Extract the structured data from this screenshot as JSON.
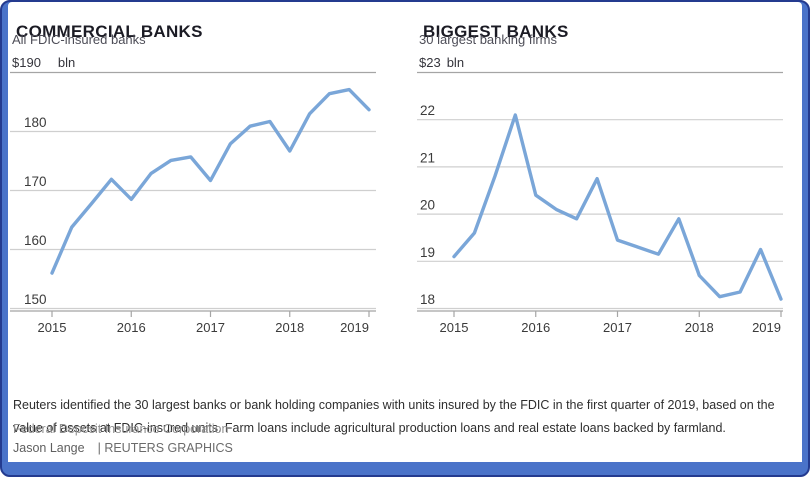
{
  "frame": {
    "border_color": "#243b8f",
    "accent_bar_color": "#4a73c9"
  },
  "chart_data": [
    {
      "type": "line",
      "title": "COMMERCIAL BANKS",
      "subtitle": "All FDIC-insured banks",
      "y_axis_top_label": "$190",
      "y_axis_unit": "bln",
      "x": [
        2015.0,
        2015.25,
        2015.5,
        2015.75,
        2016.0,
        2016.25,
        2016.5,
        2016.75,
        2017.0,
        2017.25,
        2017.5,
        2017.75,
        2018.0,
        2018.25,
        2018.5,
        2018.75,
        2019.0
      ],
      "values": [
        156.0,
        163.8,
        167.8,
        171.9,
        168.5,
        172.9,
        175.1,
        175.7,
        171.7,
        177.9,
        180.9,
        181.7,
        176.7,
        183.0,
        186.4,
        187.1,
        183.7
      ],
      "ylim": [
        150,
        190
      ],
      "yticks": [
        180,
        170,
        160,
        150
      ],
      "xticks": [
        2015,
        2016,
        2017,
        2018,
        2019
      ],
      "x_frequency": "quarterly",
      "grid": "on",
      "legend": "none",
      "line_color": "#7aa6d8"
    },
    {
      "type": "line",
      "title": "BIGGEST BANKS",
      "subtitle": "30 largest banking firms",
      "y_axis_top_label": "$23",
      "y_axis_unit": "bln",
      "x": [
        2015.0,
        2015.25,
        2015.5,
        2015.75,
        2016.0,
        2016.25,
        2016.5,
        2016.75,
        2017.0,
        2017.25,
        2017.5,
        2017.75,
        2018.0,
        2018.25,
        2018.5,
        2018.75,
        2019.0
      ],
      "values": [
        19.1,
        19.6,
        20.8,
        22.1,
        20.4,
        20.1,
        19.9,
        20.75,
        19.45,
        19.3,
        19.15,
        19.9,
        18.7,
        18.25,
        18.35,
        19.25,
        18.2
      ],
      "ylim": [
        18,
        23
      ],
      "yticks": [
        22,
        21,
        20,
        19,
        18
      ],
      "xticks": [
        2015,
        2016,
        2017,
        2018,
        2019
      ],
      "x_frequency": "quarterly",
      "grid": "on",
      "legend": "none",
      "line_color": "#7aa6d8"
    }
  ],
  "footer": {
    "note": "Reuters identified the 30 largest banks or bank holding companies with units insured by the FDIC in the first quarter of 2019, based on the value of assets at FDIC-insured units. Farm loans include agricultural production loans and real estate loans backed by farmland.",
    "source": "Federal Deposit Insurance Corporation",
    "byline": "Jason Lange",
    "credit": "| REUTERS GRAPHICS"
  }
}
